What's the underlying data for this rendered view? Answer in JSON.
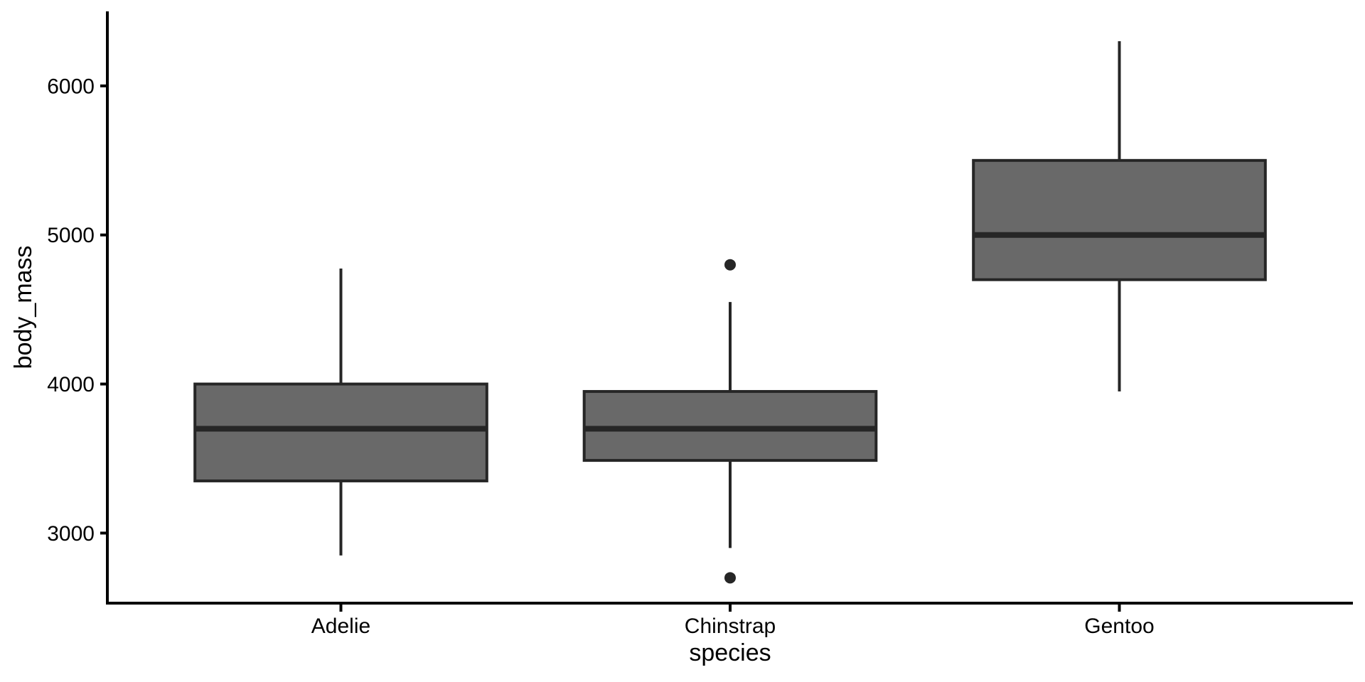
{
  "chart_data": {
    "type": "boxplot",
    "title": "",
    "xlabel": "species",
    "ylabel": "body_mass",
    "categories": [
      "Adelie",
      "Chinstrap",
      "Gentoo"
    ],
    "series": [
      {
        "name": "Adelie",
        "min": 2850,
        "q1": 3350,
        "median": 3700,
        "q3": 4000,
        "max": 4775,
        "outliers": []
      },
      {
        "name": "Chinstrap",
        "min": 2900,
        "q1": 3487.5,
        "median": 3700,
        "q3": 3950,
        "max": 4550,
        "outliers": [
          2700,
          4800
        ]
      },
      {
        "name": "Gentoo",
        "min": 3950,
        "q1": 4700,
        "median": 5000,
        "q3": 5500,
        "max": 6300,
        "outliers": []
      }
    ],
    "y_ticks": [
      3000,
      4000,
      5000,
      6000
    ],
    "ylim": [
      2530,
      6500
    ],
    "grid": false,
    "legend": "none",
    "box_width_fraction": 0.75,
    "colors": {
      "box_fill": "#696969",
      "box_stroke": "#262626",
      "median_stroke": "#262626",
      "whisker_stroke": "#262626",
      "outlier_fill": "#262626",
      "axis": "#000000",
      "text": "#000000",
      "background": "#ffffff"
    }
  }
}
